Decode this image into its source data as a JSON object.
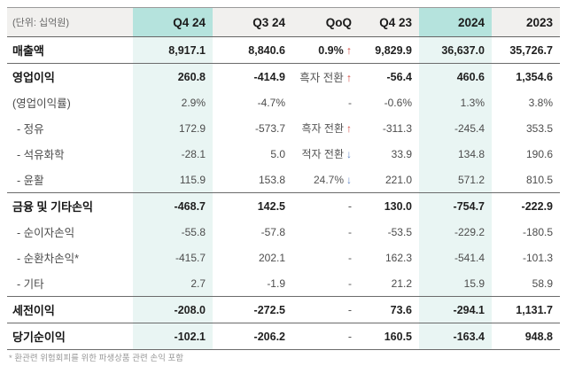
{
  "chart_data": {
    "type": "table",
    "unit": "(단위: 십억원)",
    "columns": [
      "Q4 24",
      "Q3 24",
      "QoQ",
      "Q4 23",
      "2024",
      "2023"
    ],
    "highlighted_columns": [
      "Q4 24",
      "2024"
    ],
    "rows": [
      {
        "label": "매출액",
        "q424": "8,917.1",
        "q324": "8,840.6",
        "qoq": {
          "text": "0.9%",
          "arrow": "↑",
          "dir": "up"
        },
        "q423": "9,829.9",
        "y2024": "36,637.0",
        "y2023": "35,726.7"
      },
      {
        "label": "영업이익",
        "q424": "260.8",
        "q324": "-414.9",
        "qoq": {
          "text": "흑자 전환",
          "arrow": "↑",
          "dir": "up"
        },
        "q423": "-56.4",
        "y2024": "460.6",
        "y2023": "1,354.6"
      },
      {
        "label": "(영업이익률)",
        "q424": "2.9%",
        "q324": "-4.7%",
        "qoq": {
          "text": "-"
        },
        "q423": "-0.6%",
        "y2024": "1.3%",
        "y2023": "3.8%"
      },
      {
        "label": "- 정유",
        "q424": "172.9",
        "q324": "-573.7",
        "qoq": {
          "text": "흑자 전환",
          "arrow": "↑",
          "dir": "up"
        },
        "q423": "-311.3",
        "y2024": "-245.4",
        "y2023": "353.5"
      },
      {
        "label": "- 석유화학",
        "q424": "-28.1",
        "q324": "5.0",
        "qoq": {
          "text": "적자 전환",
          "arrow": "↓",
          "dir": "down"
        },
        "q423": "33.9",
        "y2024": "134.8",
        "y2023": "190.6"
      },
      {
        "label": "- 윤활",
        "q424": "115.9",
        "q324": "153.8",
        "qoq": {
          "text": "24.7%",
          "arrow": "↓",
          "dir": "down"
        },
        "q423": "221.0",
        "y2024": "571.2",
        "y2023": "810.5"
      },
      {
        "label": "금융 및 기타손익",
        "q424": "-468.7",
        "q324": "142.5",
        "qoq": {
          "text": "-"
        },
        "q423": "130.0",
        "y2024": "-754.7",
        "y2023": "-222.9"
      },
      {
        "label": "- 순이자손익",
        "q424": "-55.8",
        "q324": "-57.8",
        "qoq": {
          "text": "-"
        },
        "q423": "-53.5",
        "y2024": "-229.2",
        "y2023": "-180.5"
      },
      {
        "label": "- 순환차손익*",
        "q424": "-415.7",
        "q324": "202.1",
        "qoq": {
          "text": "-"
        },
        "q423": "162.3",
        "y2024": "-541.4",
        "y2023": "-101.3"
      },
      {
        "label": "- 기타",
        "q424": "2.7",
        "q324": "-1.9",
        "qoq": {
          "text": "-"
        },
        "q423": "21.2",
        "y2024": "15.9",
        "y2023": "58.9"
      },
      {
        "label": "세전이익",
        "q424": "-208.0",
        "q324": "-272.5",
        "qoq": {
          "text": "-"
        },
        "q423": "73.6",
        "y2024": "-294.1",
        "y2023": "1,131.7"
      },
      {
        "label": "당기순이익",
        "q424": "-102.1",
        "q324": "-206.2",
        "qoq": {
          "text": "-"
        },
        "q423": "160.5",
        "y2024": "-163.4",
        "y2023": "948.8"
      }
    ],
    "footnote": "* 환관련 위험회피를 위한 파생상품 관련 손익 포함"
  },
  "colors": {
    "header_highlight": "#b5e3dd",
    "body_highlight": "#e9f5f3",
    "arrow_up": "#d14b44",
    "arrow_down": "#6487c5"
  }
}
